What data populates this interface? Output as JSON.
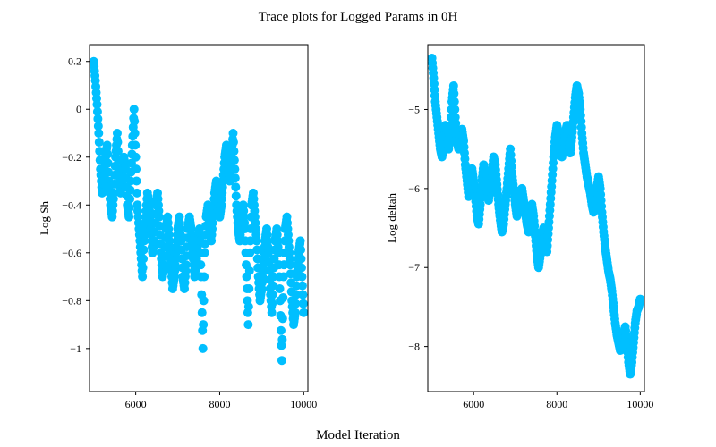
{
  "figure": {
    "title": "Trace plots for Logged Params in 0H",
    "xlabel": "Model Iteration"
  },
  "chart_data": [
    {
      "type": "scatter",
      "title": "",
      "xlabel": "",
      "ylabel": "Log Sh",
      "xlim": [
        4900,
        10100
      ],
      "ylim": [
        -1.18,
        0.27
      ],
      "xticks": [
        6000,
        8000,
        10000
      ],
      "yticks": [
        0.2,
        0.0,
        -0.2,
        -0.4,
        -0.6,
        -0.8,
        -1.0
      ],
      "color": "#00bfff",
      "x": [
        5000,
        5040,
        5080,
        5120,
        5160,
        5200,
        5240,
        5280,
        5320,
        5360,
        5400,
        5440,
        5480,
        5520,
        5560,
        5600,
        5640,
        5680,
        5720,
        5760,
        5800,
        5840,
        5880,
        5920,
        5960,
        6000,
        6040,
        6080,
        6120,
        6160,
        6200,
        6240,
        6280,
        6320,
        6360,
        6400,
        6440,
        6480,
        6520,
        6560,
        6600,
        6640,
        6680,
        6720,
        6760,
        6800,
        6840,
        6880,
        6920,
        6960,
        7000,
        7040,
        7080,
        7120,
        7160,
        7200,
        7240,
        7280,
        7320,
        7360,
        7400,
        7440,
        7480,
        7520,
        7560,
        7600,
        7640,
        7680,
        7720,
        7760,
        7800,
        7840,
        7880,
        7920,
        7960,
        8000,
        8040,
        8080,
        8120,
        8160,
        8200,
        8240,
        8280,
        8320,
        8360,
        8400,
        8440,
        8480,
        8520,
        8560,
        8600,
        8640,
        8680,
        8720,
        8760,
        8800,
        8840,
        8880,
        8920,
        8960,
        9000,
        9040,
        9080,
        9120,
        9160,
        9200,
        9240,
        9280,
        9320,
        9360,
        9400,
        9440,
        9480,
        9520,
        9560,
        9600,
        9640,
        9680,
        9720,
        9760,
        9800,
        9840,
        9880,
        9920,
        9960,
        10000
      ],
      "y": [
        0.2,
        0.12,
        0.02,
        -0.1,
        -0.25,
        -0.35,
        -0.3,
        -0.2,
        -0.15,
        -0.3,
        -0.4,
        -0.45,
        -0.35,
        -0.2,
        -0.1,
        -0.25,
        -0.35,
        -0.3,
        -0.2,
        -0.25,
        -0.4,
        -0.45,
        -0.3,
        -0.15,
        0.0,
        -0.2,
        -0.4,
        -0.5,
        -0.6,
        -0.7,
        -0.55,
        -0.45,
        -0.35,
        -0.4,
        -0.5,
        -0.6,
        -0.55,
        -0.4,
        -0.35,
        -0.45,
        -0.6,
        -0.7,
        -0.65,
        -0.5,
        -0.45,
        -0.55,
        -0.65,
        -0.75,
        -0.7,
        -0.6,
        -0.5,
        -0.45,
        -0.55,
        -0.7,
        -0.75,
        -0.65,
        -0.5,
        -0.45,
        -0.5,
        -0.6,
        -0.7,
        -0.65,
        -0.55,
        -0.5,
        -0.7,
        -1.0,
        -0.6,
        -0.45,
        -0.4,
        -0.5,
        -0.55,
        -0.45,
        -0.35,
        -0.3,
        -0.35,
        -0.45,
        -0.4,
        -0.3,
        -0.2,
        -0.15,
        -0.25,
        -0.3,
        -0.2,
        -0.1,
        -0.25,
        -0.4,
        -0.5,
        -0.55,
        -0.45,
        -0.4,
        -0.5,
        -0.7,
        -0.9,
        -0.6,
        -0.4,
        -0.35,
        -0.45,
        -0.55,
        -0.7,
        -0.8,
        -0.75,
        -0.65,
        -0.55,
        -0.5,
        -0.6,
        -0.75,
        -0.85,
        -0.7,
        -0.55,
        -0.5,
        -0.6,
        -0.8,
        -1.05,
        -0.7,
        -0.5,
        -0.45,
        -0.55,
        -0.65,
        -0.8,
        -0.9,
        -0.85,
        -0.7,
        -0.6,
        -0.55,
        -0.7,
        -0.85
      ]
    },
    {
      "type": "scatter",
      "title": "",
      "xlabel": "",
      "ylabel": "Log deltah",
      "xlim": [
        4900,
        10100
      ],
      "ylim": [
        -8.57,
        -4.18
      ],
      "xticks": [
        6000,
        8000,
        10000
      ],
      "yticks": [
        -5,
        -6,
        -7,
        -8
      ],
      "color": "#00bfff",
      "x": [
        5000,
        5040,
        5080,
        5120,
        5160,
        5200,
        5240,
        5280,
        5320,
        5360,
        5400,
        5440,
        5480,
        5520,
        5560,
        5600,
        5640,
        5680,
        5720,
        5760,
        5800,
        5840,
        5880,
        5920,
        5960,
        6000,
        6040,
        6080,
        6120,
        6160,
        6200,
        6240,
        6280,
        6320,
        6360,
        6400,
        6440,
        6480,
        6520,
        6560,
        6600,
        6640,
        6680,
        6720,
        6760,
        6800,
        6840,
        6880,
        6920,
        6960,
        7000,
        7040,
        7080,
        7120,
        7160,
        7200,
        7240,
        7280,
        7320,
        7360,
        7400,
        7440,
        7480,
        7520,
        7560,
        7600,
        7640,
        7680,
        7720,
        7760,
        7800,
        7840,
        7880,
        7920,
        7960,
        8000,
        8040,
        8080,
        8120,
        8160,
        8200,
        8240,
        8280,
        8320,
        8360,
        8400,
        8440,
        8480,
        8520,
        8560,
        8600,
        8640,
        8680,
        8720,
        8760,
        8800,
        8840,
        8880,
        8920,
        8960,
        9000,
        9040,
        9080,
        9120,
        9160,
        9200,
        9240,
        9280,
        9320,
        9360,
        9400,
        9440,
        9480,
        9520,
        9560,
        9600,
        9640,
        9680,
        9720,
        9760,
        9800,
        9840,
        9880,
        9920,
        9960,
        10000
      ],
      "y": [
        -4.35,
        -4.6,
        -4.9,
        -5.1,
        -5.3,
        -5.5,
        -5.6,
        -5.45,
        -5.2,
        -5.35,
        -5.5,
        -5.3,
        -4.9,
        -4.7,
        -5.1,
        -5.4,
        -5.5,
        -5.35,
        -5.25,
        -5.4,
        -5.7,
        -5.9,
        -6.1,
        -6.0,
        -5.75,
        -5.9,
        -6.1,
        -6.35,
        -6.45,
        -6.2,
        -5.9,
        -5.7,
        -5.8,
        -6.0,
        -6.15,
        -6.0,
        -5.8,
        -5.6,
        -5.7,
        -5.95,
        -6.2,
        -6.4,
        -6.55,
        -6.45,
        -6.2,
        -6.0,
        -5.75,
        -5.5,
        -5.8,
        -6.0,
        -6.2,
        -6.35,
        -6.25,
        -6.1,
        -6.0,
        -6.15,
        -6.3,
        -6.45,
        -6.55,
        -6.4,
        -6.2,
        -6.35,
        -6.6,
        -6.85,
        -7.0,
        -6.85,
        -6.6,
        -6.5,
        -6.65,
        -6.8,
        -6.5,
        -6.2,
        -5.9,
        -5.6,
        -5.35,
        -5.2,
        -5.3,
        -5.5,
        -5.6,
        -5.45,
        -5.3,
        -5.2,
        -5.4,
        -5.55,
        -5.35,
        -5.1,
        -4.85,
        -4.7,
        -4.8,
        -5.0,
        -5.3,
        -5.55,
        -5.7,
        -5.85,
        -5.95,
        -6.05,
        -6.2,
        -6.3,
        -6.2,
        -6.0,
        -5.85,
        -6.0,
        -6.3,
        -6.55,
        -6.75,
        -6.9,
        -7.05,
        -7.15,
        -7.3,
        -7.5,
        -7.7,
        -7.85,
        -7.95,
        -8.05,
        -8.0,
        -7.85,
        -7.75,
        -7.95,
        -8.2,
        -8.35,
        -8.2,
        -7.95,
        -7.7,
        -7.55,
        -7.5,
        -7.4
      ]
    }
  ]
}
